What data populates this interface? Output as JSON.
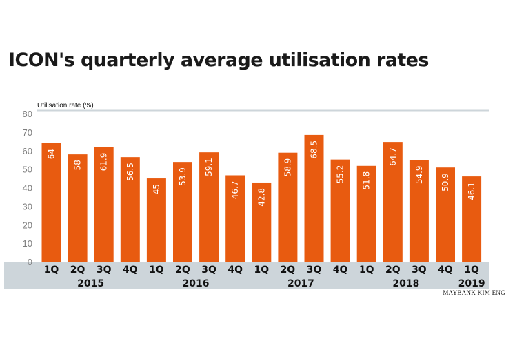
{
  "chart_data": {
    "type": "bar",
    "title": "ICON's quarterly average utilisation rates",
    "ylabel": "Utilisation rate (%)",
    "xlabel": "",
    "ylim": [
      0,
      80
    ],
    "yticks": [
      0,
      10,
      20,
      30,
      40,
      50,
      60,
      70,
      80
    ],
    "categories": [
      "1Q",
      "2Q",
      "3Q",
      "4Q",
      "1Q",
      "2Q",
      "3Q",
      "4Q",
      "1Q",
      "2Q",
      "3Q",
      "4Q",
      "1Q",
      "2Q",
      "3Q",
      "4Q",
      "1Q"
    ],
    "values": [
      64,
      58,
      61.9,
      56.5,
      45,
      53.9,
      59.1,
      46.7,
      42.8,
      58.9,
      68.5,
      55.2,
      51.8,
      64.7,
      54.9,
      50.9,
      46.1
    ],
    "value_labels": [
      "64",
      "58",
      "61.9",
      "56.5",
      "45",
      "53.9",
      "59.1",
      "46.7",
      "42.8",
      "58.9",
      "68.5",
      "55.2",
      "51.8",
      "64.7",
      "54.9",
      "50.9",
      "46.1"
    ],
    "years": [
      {
        "label": "2015",
        "start": 0,
        "end": 3
      },
      {
        "label": "2016",
        "start": 4,
        "end": 7
      },
      {
        "label": "2017",
        "start": 8,
        "end": 11
      },
      {
        "label": "2018",
        "start": 12,
        "end": 15
      },
      {
        "label": "2019",
        "start": 16,
        "end": 16
      }
    ],
    "source": "MAYBANK KIM ENG"
  },
  "colors": {
    "bar": "#e85b10",
    "axis_band": "#cdd5da",
    "top_rule": "#cdd5da"
  }
}
